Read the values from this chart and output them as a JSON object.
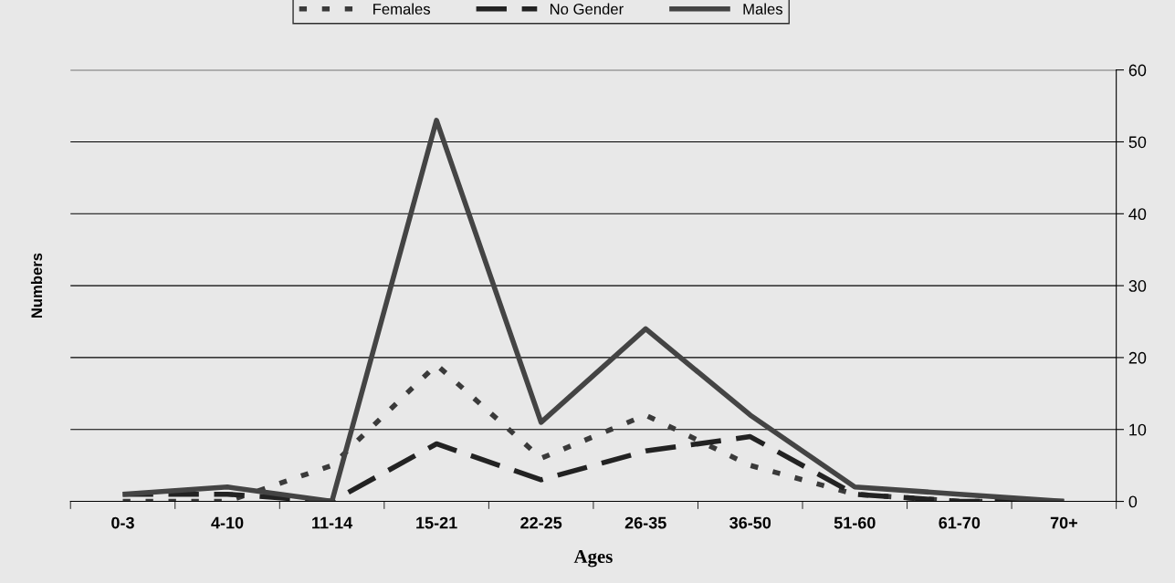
{
  "chart_data": {
    "type": "line",
    "xlabel": "Ages",
    "ylabel": "Numbers",
    "categories": [
      "0-3",
      "4-10",
      "11-14",
      "15-21",
      "22-25",
      "26-35",
      "36-50",
      "51-60",
      "61-70",
      "70+"
    ],
    "series": [
      {
        "name": "Females",
        "color": "#3a3a3a",
        "line_style": "dotted",
        "values": [
          0,
          0,
          5,
          19,
          6,
          12,
          5,
          1,
          0,
          0
        ]
      },
      {
        "name": "No Gender",
        "color": "#222222",
        "line_style": "dashed",
        "values": [
          1,
          1,
          0,
          8,
          3,
          7,
          9,
          1,
          0,
          0
        ]
      },
      {
        "name": "Males",
        "color": "#444444",
        "line_style": "solid",
        "values": [
          1,
          2,
          0,
          53,
          11,
          24,
          12,
          2,
          1,
          0
        ]
      }
    ],
    "ylim": [
      0,
      60
    ],
    "yticks": [
      0,
      10,
      20,
      30,
      40,
      50,
      60
    ],
    "grid": "y",
    "legend": "top",
    "marker": "none"
  }
}
